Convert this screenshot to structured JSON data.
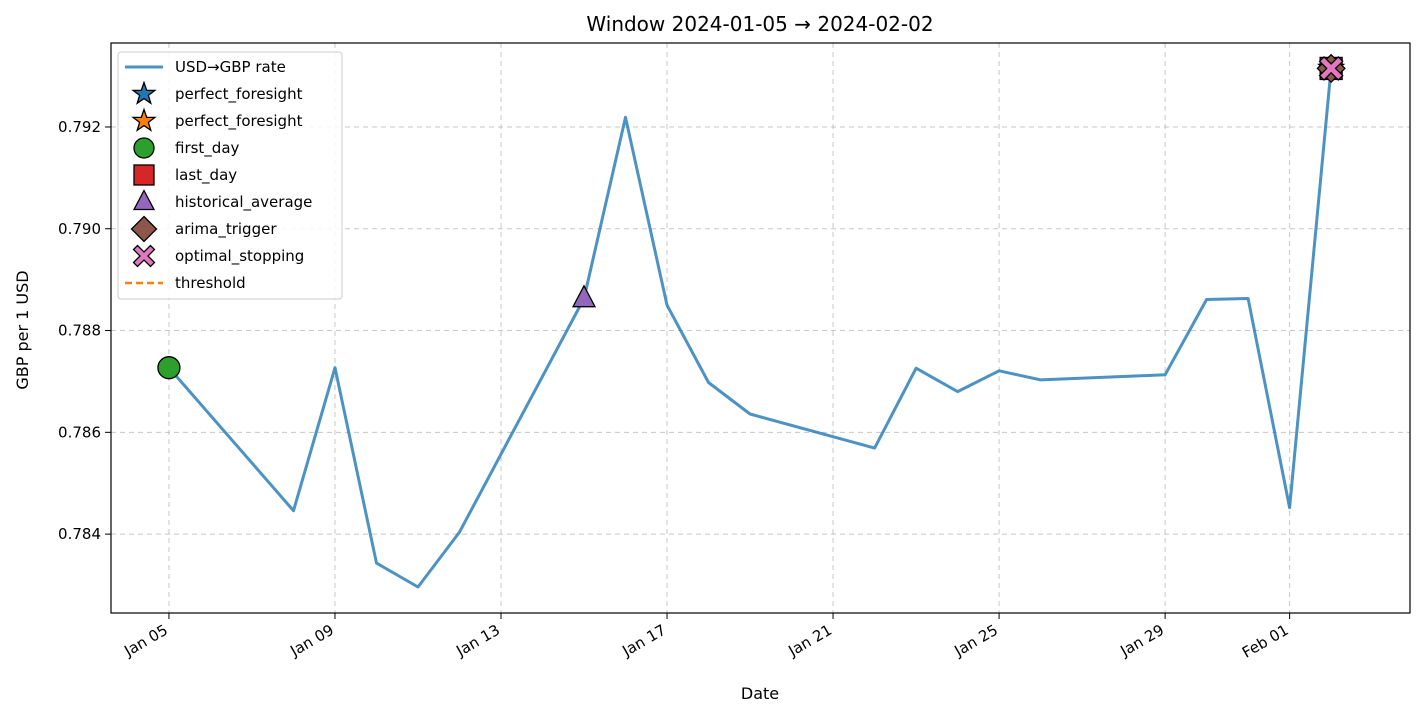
{
  "chart_data": {
    "type": "line",
    "title": "Window 2024-01-05 → 2024-02-02",
    "xlabel": "Date",
    "ylabel": "GBP per 1 USD",
    "x_axis_type": "date",
    "xlim": [
      "2024-01-03T14:30",
      "2024-02-03T21:36"
    ],
    "ylim": [
      0.78245,
      0.79365
    ],
    "x_ticks": [
      {
        "date": "2024-01-05",
        "label": "Jan 05"
      },
      {
        "date": "2024-01-09",
        "label": "Jan 09"
      },
      {
        "date": "2024-01-13",
        "label": "Jan 13"
      },
      {
        "date": "2024-01-17",
        "label": "Jan 17"
      },
      {
        "date": "2024-01-21",
        "label": "Jan 21"
      },
      {
        "date": "2024-01-25",
        "label": "Jan 25"
      },
      {
        "date": "2024-01-29",
        "label": "Jan 29"
      },
      {
        "date": "2024-02-01",
        "label": "Feb 01"
      }
    ],
    "y_ticks": [
      {
        "value": 0.784,
        "label": "0.784"
      },
      {
        "value": 0.786,
        "label": "0.786"
      },
      {
        "value": 0.788,
        "label": "0.788"
      },
      {
        "value": 0.79,
        "label": "0.790"
      },
      {
        "value": 0.792,
        "label": "0.792"
      }
    ],
    "grid": true,
    "legend_position": "top-left",
    "series": [
      {
        "name": "USD→GBP rate",
        "color": "#1f77b4",
        "points": [
          {
            "date": "2024-01-05",
            "value": 0.78727
          },
          {
            "date": "2024-01-08",
            "value": 0.78446
          },
          {
            "date": "2024-01-09",
            "value": 0.78727
          },
          {
            "date": "2024-01-10",
            "value": 0.78343
          },
          {
            "date": "2024-01-11",
            "value": 0.78296
          },
          {
            "date": "2024-01-12",
            "value": 0.78404
          },
          {
            "date": "2024-01-15",
            "value": 0.78863
          },
          {
            "date": "2024-01-16",
            "value": 0.79219
          },
          {
            "date": "2024-01-17",
            "value": 0.7885
          },
          {
            "date": "2024-01-18",
            "value": 0.78698
          },
          {
            "date": "2024-01-19",
            "value": 0.78636
          },
          {
            "date": "2024-01-22",
            "value": 0.78569
          },
          {
            "date": "2024-01-23",
            "value": 0.78726
          },
          {
            "date": "2024-01-24",
            "value": 0.7868
          },
          {
            "date": "2024-01-25",
            "value": 0.78721
          },
          {
            "date": "2024-01-26",
            "value": 0.78703
          },
          {
            "date": "2024-01-29",
            "value": 0.78713
          },
          {
            "date": "2024-01-30",
            "value": 0.78861
          },
          {
            "date": "2024-01-31",
            "value": 0.78863
          },
          {
            "date": "2024-02-01",
            "value": 0.78452
          },
          {
            "date": "2024-02-02",
            "value": 0.79315
          }
        ]
      }
    ],
    "markers": [
      {
        "name": "perfect_foresight",
        "shape": "star",
        "color": "#1f77b4",
        "date": "2024-02-02",
        "value": 0.79315
      },
      {
        "name": "perfect_foresight",
        "shape": "star",
        "color": "#ff7f0e",
        "date": "2024-02-02",
        "value": 0.79315
      },
      {
        "name": "first_day",
        "shape": "circle",
        "color": "#2ca02c",
        "date": "2024-01-05",
        "value": 0.78727
      },
      {
        "name": "last_day",
        "shape": "square",
        "color": "#d62728",
        "date": "2024-02-02",
        "value": 0.79315
      },
      {
        "name": "historical_average",
        "shape": "triangle",
        "color": "#9467bd",
        "date": "2024-01-15",
        "value": 0.78863
      },
      {
        "name": "arima_trigger",
        "shape": "diamond",
        "color": "#8c564b",
        "date": "2024-02-02",
        "value": 0.79315
      },
      {
        "name": "optimal_stopping",
        "shape": "x",
        "color": "#e377c2",
        "date": "2024-02-02",
        "value": 0.79315
      }
    ],
    "threshold": {
      "name": "threshold",
      "color": "#ff7f0e",
      "style": "dashed"
    }
  }
}
